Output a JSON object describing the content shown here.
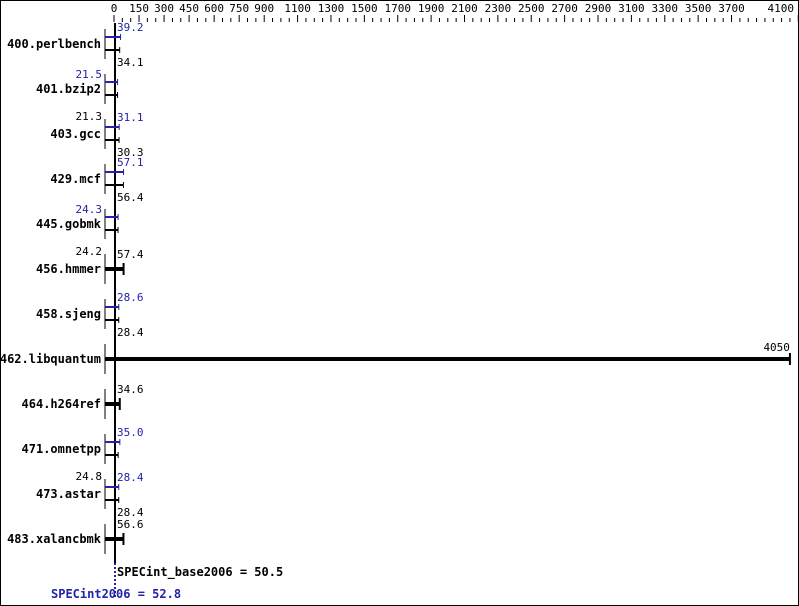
{
  "chart_data": {
    "type": "bar",
    "orientation": "horizontal",
    "x_ticks": [
      0,
      150,
      300,
      450,
      600,
      750,
      900,
      1100,
      1300,
      1500,
      1700,
      1900,
      2100,
      2300,
      2500,
      2700,
      2900,
      3100,
      3300,
      3500,
      3700,
      4100
    ],
    "xlim": [
      0,
      4100
    ],
    "categories": [
      "400.perlbench",
      "401.bzip2",
      "403.gcc",
      "429.mcf",
      "445.gobmk",
      "456.hmmer",
      "458.sjeng",
      "462.libquantum",
      "464.h264ref",
      "471.omnetpp",
      "473.astar",
      "483.xalancbmk"
    ],
    "series": [
      {
        "name": "base",
        "color": "#000000",
        "values": [
          34.1,
          21.3,
          30.3,
          56.4,
          24.2,
          57.4,
          28.4,
          4050,
          34.6,
          24.8,
          28.4,
          56.6
        ]
      },
      {
        "name": "peak",
        "color": "#2222aa",
        "values": [
          39.2,
          21.5,
          31.1,
          57.1,
          24.3,
          null,
          28.6,
          null,
          null,
          35.0,
          28.4,
          null
        ]
      }
    ],
    "summary": {
      "base_label": "SPECint_base2006 = 50.5",
      "peak_label": "SPECint2006 = 52.8"
    },
    "grid": false
  }
}
